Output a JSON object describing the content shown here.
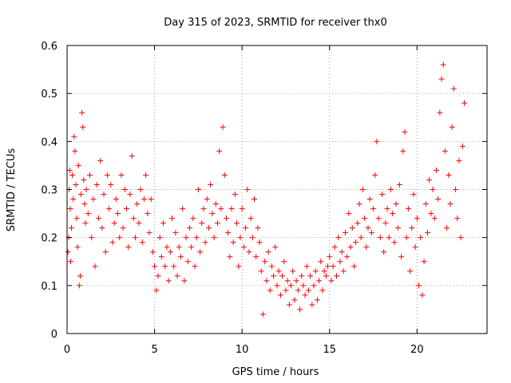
{
  "chart_data": {
    "type": "scatter",
    "title": "Day 315 of 2023, SRMTID for receiver thx0",
    "xlabel": "GPS time / hours",
    "ylabel": "SRMTID / TECUs",
    "xlim": [
      0,
      24
    ],
    "ylim": [
      0,
      0.6
    ],
    "xticks": [
      0,
      5,
      10,
      15,
      20
    ],
    "xtick_labels": [
      "0",
      "5",
      "10",
      "15",
      "20"
    ],
    "yticks": [
      0,
      0.1,
      0.2,
      0.3,
      0.4,
      0.5,
      0.6
    ],
    "ytick_labels": [
      "0",
      "0.1",
      "0.2",
      "0.3",
      "0.4",
      "0.5",
      "0.6"
    ],
    "grid": true,
    "marker": "+",
    "color": "#ff0000",
    "series": [
      {
        "name": "SRMTID",
        "points": [
          [
            0.05,
            0.17
          ],
          [
            0.1,
            0.2
          ],
          [
            0.12,
            0.3
          ],
          [
            0.15,
            0.34
          ],
          [
            0.18,
            0.26
          ],
          [
            0.2,
            0.15
          ],
          [
            0.25,
            0.22
          ],
          [
            0.3,
            0.33
          ],
          [
            0.35,
            0.28
          ],
          [
            0.4,
            0.41
          ],
          [
            0.45,
            0.38
          ],
          [
            0.5,
            0.31
          ],
          [
            0.55,
            0.24
          ],
          [
            0.6,
            0.18
          ],
          [
            0.65,
            0.35
          ],
          [
            0.7,
            0.1
          ],
          [
            0.75,
            0.12
          ],
          [
            0.8,
            0.29
          ],
          [
            0.85,
            0.46
          ],
          [
            0.9,
            0.43
          ],
          [
            0.95,
            0.32
          ],
          [
            1.0,
            0.27
          ],
          [
            1.05,
            0.23
          ],
          [
            1.1,
            0.3
          ],
          [
            1.2,
            0.25
          ],
          [
            1.3,
            0.33
          ],
          [
            1.4,
            0.2
          ],
          [
            1.5,
            0.28
          ],
          [
            1.6,
            0.14
          ],
          [
            1.7,
            0.31
          ],
          [
            1.8,
            0.24
          ],
          [
            1.9,
            0.36
          ],
          [
            2.0,
            0.22
          ],
          [
            2.1,
            0.29
          ],
          [
            2.2,
            0.17
          ],
          [
            2.3,
            0.33
          ],
          [
            2.4,
            0.26
          ],
          [
            2.5,
            0.31
          ],
          [
            2.6,
            0.19
          ],
          [
            2.7,
            0.23
          ],
          [
            2.8,
            0.28
          ],
          [
            2.9,
            0.25
          ],
          [
            3.0,
            0.2
          ],
          [
            3.1,
            0.33
          ],
          [
            3.2,
            0.22
          ],
          [
            3.3,
            0.3
          ],
          [
            3.4,
            0.26
          ],
          [
            3.5,
            0.18
          ],
          [
            3.6,
            0.29
          ],
          [
            3.7,
            0.37
          ],
          [
            3.8,
            0.24
          ],
          [
            3.9,
            0.2
          ],
          [
            4.0,
            0.27
          ],
          [
            4.1,
            0.23
          ],
          [
            4.2,
            0.3
          ],
          [
            4.3,
            0.19
          ],
          [
            4.4,
            0.28
          ],
          [
            4.5,
            0.33
          ],
          [
            4.6,
            0.25
          ],
          [
            4.7,
            0.21
          ],
          [
            4.8,
            0.28
          ],
          [
            4.9,
            0.17
          ],
          [
            5.0,
            0.14
          ],
          [
            5.1,
            0.09
          ],
          [
            5.2,
            0.12
          ],
          [
            5.3,
            0.2
          ],
          [
            5.4,
            0.16
          ],
          [
            5.5,
            0.23
          ],
          [
            5.6,
            0.14
          ],
          [
            5.7,
            0.18
          ],
          [
            5.8,
            0.11
          ],
          [
            5.9,
            0.17
          ],
          [
            6.0,
            0.24
          ],
          [
            6.1,
            0.14
          ],
          [
            6.2,
            0.21
          ],
          [
            6.3,
            0.12
          ],
          [
            6.4,
            0.18
          ],
          [
            6.5,
            0.16
          ],
          [
            6.6,
            0.26
          ],
          [
            6.7,
            0.11
          ],
          [
            6.8,
            0.2
          ],
          [
            6.9,
            0.15
          ],
          [
            7.0,
            0.22
          ],
          [
            7.1,
            0.18
          ],
          [
            7.2,
            0.24
          ],
          [
            7.3,
            0.14
          ],
          [
            7.4,
            0.2
          ],
          [
            7.5,
            0.3
          ],
          [
            7.6,
            0.17
          ],
          [
            7.7,
            0.23
          ],
          [
            7.8,
            0.26
          ],
          [
            7.9,
            0.19
          ],
          [
            8.0,
            0.28
          ],
          [
            8.1,
            0.22
          ],
          [
            8.2,
            0.31
          ],
          [
            8.3,
            0.25
          ],
          [
            8.4,
            0.2
          ],
          [
            8.5,
            0.27
          ],
          [
            8.6,
            0.23
          ],
          [
            8.7,
            0.38
          ],
          [
            8.8,
            0.26
          ],
          [
            8.9,
            0.43
          ],
          [
            9.0,
            0.33
          ],
          [
            9.1,
            0.24
          ],
          [
            9.2,
            0.21
          ],
          [
            9.3,
            0.16
          ],
          [
            9.4,
            0.26
          ],
          [
            9.5,
            0.19
          ],
          [
            9.6,
            0.29
          ],
          [
            9.7,
            0.23
          ],
          [
            9.8,
            0.14
          ],
          [
            9.9,
            0.2
          ],
          [
            10.0,
            0.26
          ],
          [
            10.1,
            0.18
          ],
          [
            10.2,
            0.22
          ],
          [
            10.3,
            0.3
          ],
          [
            10.4,
            0.17
          ],
          [
            10.5,
            0.24
          ],
          [
            10.6,
            0.2
          ],
          [
            10.7,
            0.28
          ],
          [
            10.8,
            0.16
          ],
          [
            10.9,
            0.22
          ],
          [
            11.0,
            0.19
          ],
          [
            11.1,
            0.13
          ],
          [
            11.2,
            0.04
          ],
          [
            11.3,
            0.15
          ],
          [
            11.4,
            0.11
          ],
          [
            11.5,
            0.17
          ],
          [
            11.6,
            0.09
          ],
          [
            11.7,
            0.14
          ],
          [
            11.8,
            0.12
          ],
          [
            11.9,
            0.18
          ],
          [
            12.0,
            0.1
          ],
          [
            12.1,
            0.13
          ],
          [
            12.2,
            0.08
          ],
          [
            12.3,
            0.12
          ],
          [
            12.4,
            0.15
          ],
          [
            12.5,
            0.09
          ],
          [
            12.6,
            0.11
          ],
          [
            12.7,
            0.06
          ],
          [
            12.8,
            0.1
          ],
          [
            12.9,
            0.13
          ],
          [
            13.0,
            0.07
          ],
          [
            13.1,
            0.11
          ],
          [
            13.2,
            0.09
          ],
          [
            13.3,
            0.05
          ],
          [
            13.4,
            0.12
          ],
          [
            13.5,
            0.1
          ],
          [
            13.6,
            0.08
          ],
          [
            13.7,
            0.14
          ],
          [
            13.8,
            0.09
          ],
          [
            13.9,
            0.12
          ],
          [
            14.0,
            0.06
          ],
          [
            14.1,
            0.1
          ],
          [
            14.2,
            0.13
          ],
          [
            14.3,
            0.07
          ],
          [
            14.4,
            0.11
          ],
          [
            14.5,
            0.15
          ],
          [
            14.6,
            0.09
          ],
          [
            14.7,
            0.13
          ],
          [
            14.8,
            0.12
          ],
          [
            14.9,
            0.14
          ],
          [
            15.0,
            0.16
          ],
          [
            15.1,
            0.11
          ],
          [
            15.2,
            0.14
          ],
          [
            15.3,
            0.18
          ],
          [
            15.4,
            0.12
          ],
          [
            15.5,
            0.2
          ],
          [
            15.6,
            0.15
          ],
          [
            15.7,
            0.17
          ],
          [
            15.8,
            0.13
          ],
          [
            15.9,
            0.21
          ],
          [
            16.0,
            0.16
          ],
          [
            16.1,
            0.25
          ],
          [
            16.2,
            0.18
          ],
          [
            16.3,
            0.22
          ],
          [
            16.4,
            0.14
          ],
          [
            16.5,
            0.19
          ],
          [
            16.6,
            0.23
          ],
          [
            16.7,
            0.27
          ],
          [
            16.8,
            0.2
          ],
          [
            16.9,
            0.3
          ],
          [
            17.0,
            0.24
          ],
          [
            17.1,
            0.18
          ],
          [
            17.2,
            0.22
          ],
          [
            17.3,
            0.28
          ],
          [
            17.4,
            0.21
          ],
          [
            17.5,
            0.26
          ],
          [
            17.6,
            0.33
          ],
          [
            17.7,
            0.4
          ],
          [
            17.8,
            0.24
          ],
          [
            17.9,
            0.2
          ],
          [
            18.0,
            0.29
          ],
          [
            18.1,
            0.17
          ],
          [
            18.2,
            0.23
          ],
          [
            18.3,
            0.26
          ],
          [
            18.4,
            0.2
          ],
          [
            18.5,
            0.3
          ],
          [
            18.6,
            0.25
          ],
          [
            18.7,
            0.19
          ],
          [
            18.8,
            0.27
          ],
          [
            18.9,
            0.22
          ],
          [
            19.0,
            0.31
          ],
          [
            19.1,
            0.16
          ],
          [
            19.2,
            0.38
          ],
          [
            19.3,
            0.42
          ],
          [
            19.4,
            0.2
          ],
          [
            19.5,
            0.26
          ],
          [
            19.6,
            0.13
          ],
          [
            19.7,
            0.22
          ],
          [
            19.8,
            0.29
          ],
          [
            19.9,
            0.18
          ],
          [
            20.0,
            0.24
          ],
          [
            20.1,
            0.1
          ],
          [
            20.2,
            0.2
          ],
          [
            20.3,
            0.08
          ],
          [
            20.4,
            0.15
          ],
          [
            20.5,
            0.27
          ],
          [
            20.6,
            0.21
          ],
          [
            20.7,
            0.32
          ],
          [
            20.8,
            0.25
          ],
          [
            20.9,
            0.3
          ],
          [
            21.0,
            0.24
          ],
          [
            21.1,
            0.34
          ],
          [
            21.2,
            0.28
          ],
          [
            21.3,
            0.46
          ],
          [
            21.4,
            0.53
          ],
          [
            21.5,
            0.56
          ],
          [
            21.6,
            0.38
          ],
          [
            21.7,
            0.22
          ],
          [
            21.8,
            0.33
          ],
          [
            21.9,
            0.27
          ],
          [
            22.0,
            0.43
          ],
          [
            22.1,
            0.51
          ],
          [
            22.2,
            0.3
          ],
          [
            22.3,
            0.24
          ],
          [
            22.4,
            0.36
          ],
          [
            22.5,
            0.2
          ],
          [
            22.6,
            0.39
          ],
          [
            22.7,
            0.48
          ]
        ]
      }
    ]
  }
}
